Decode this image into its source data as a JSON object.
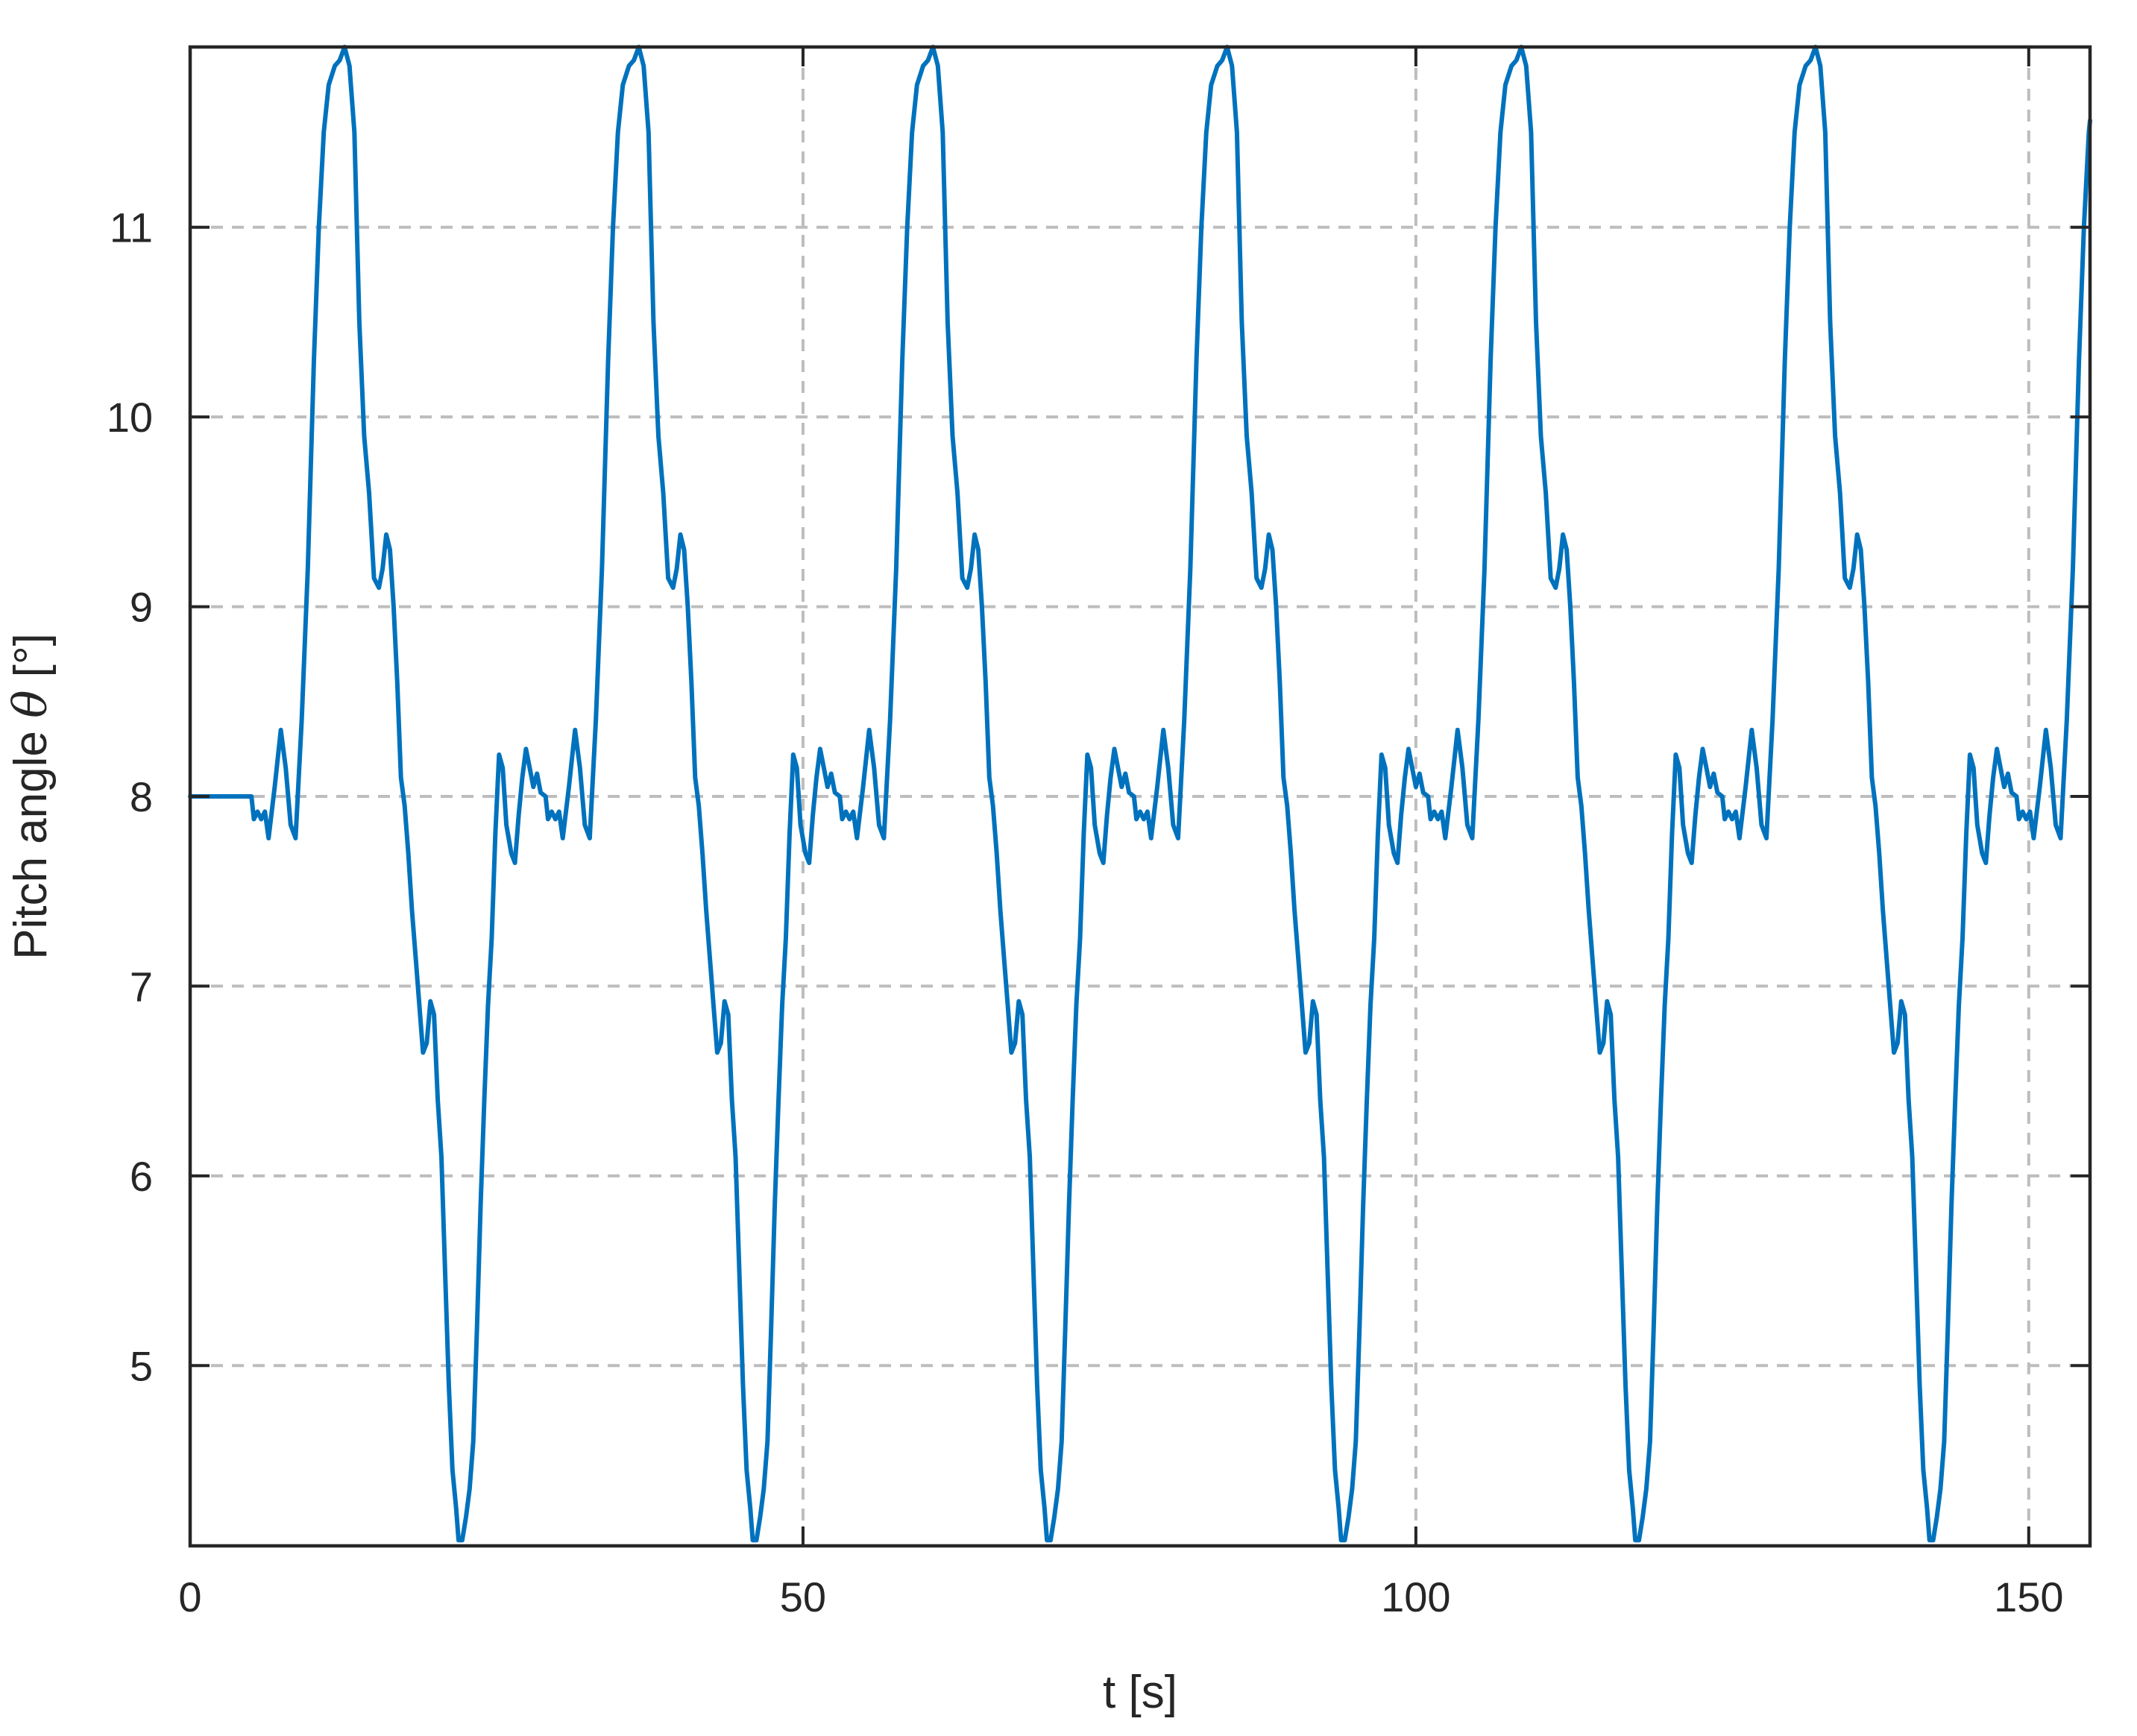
{
  "chart_data": {
    "type": "line",
    "title": "",
    "xlabel": "t [s]",
    "ylabel_prefix": "Pitch angle ",
    "ylabel_symbol": "θ",
    "ylabel_suffix": " [°]",
    "xlim": [
      0,
      155
    ],
    "ylim": [
      4.05,
      11.95
    ],
    "xticks": [
      0,
      50,
      100,
      150
    ],
    "yticks": [
      5,
      6,
      7,
      8,
      9,
      10,
      11
    ],
    "xtick_labels": [
      "0",
      "50",
      "100",
      "150"
    ],
    "ytick_labels": [
      "5",
      "6",
      "7",
      "8",
      "9",
      "10",
      "11"
    ],
    "grid": true,
    "legend": "none",
    "period_s": 24,
    "series": [
      {
        "color": "#0072BD",
        "initial_segment": [
          [
            0,
            8.0
          ],
          [
            5.0,
            8.0
          ]
        ],
        "cycle_start_s": 5.0,
        "cycle_template": [
          [
            0.0,
            8.0
          ],
          [
            0.2,
            7.88
          ],
          [
            0.5,
            7.92
          ],
          [
            0.8,
            7.88
          ],
          [
            1.1,
            7.92
          ],
          [
            1.4,
            7.78
          ],
          [
            1.9,
            8.05
          ],
          [
            2.4,
            8.35
          ],
          [
            2.8,
            8.15
          ],
          [
            3.2,
            7.85
          ],
          [
            3.6,
            7.78
          ],
          [
            4.1,
            8.4
          ],
          [
            4.6,
            9.2
          ],
          [
            5.1,
            10.3
          ],
          [
            5.5,
            11.0
          ],
          [
            5.9,
            11.5
          ],
          [
            6.3,
            11.75
          ],
          [
            6.8,
            11.85
          ],
          [
            7.2,
            11.88
          ],
          [
            7.6,
            11.95
          ],
          [
            8.0,
            11.85
          ],
          [
            8.4,
            11.5
          ],
          [
            8.8,
            10.5
          ],
          [
            9.2,
            9.9
          ],
          [
            9.6,
            9.6
          ],
          [
            10.0,
            9.15
          ],
          [
            10.4,
            9.1
          ],
          [
            10.7,
            9.2
          ],
          [
            11.0,
            9.38
          ],
          [
            11.3,
            9.3
          ],
          [
            11.6,
            9.0
          ],
          [
            11.9,
            8.6
          ],
          [
            12.2,
            8.1
          ],
          [
            12.5,
            7.95
          ],
          [
            12.8,
            7.7
          ],
          [
            13.1,
            7.4
          ],
          [
            13.4,
            7.15
          ],
          [
            13.7,
            6.9
          ],
          [
            14.0,
            6.65
          ],
          [
            14.3,
            6.7
          ],
          [
            14.6,
            6.92
          ],
          [
            14.9,
            6.85
          ],
          [
            15.2,
            6.4
          ],
          [
            15.5,
            6.1
          ],
          [
            15.8,
            5.5
          ],
          [
            16.1,
            4.9
          ],
          [
            16.4,
            4.45
          ],
          [
            16.7,
            4.25
          ],
          [
            16.9,
            4.08
          ],
          [
            17.2,
            4.08
          ],
          [
            17.5,
            4.2
          ],
          [
            17.8,
            4.35
          ],
          [
            18.1,
            4.6
          ],
          [
            18.4,
            5.2
          ],
          [
            18.7,
            5.85
          ],
          [
            19.0,
            6.4
          ],
          [
            19.3,
            6.9
          ],
          [
            19.6,
            7.25
          ],
          [
            19.9,
            7.8
          ],
          [
            20.2,
            8.22
          ],
          [
            20.5,
            8.15
          ],
          [
            20.8,
            7.85
          ],
          [
            21.2,
            7.7
          ],
          [
            21.5,
            7.65
          ],
          [
            21.8,
            7.9
          ],
          [
            22.1,
            8.1
          ],
          [
            22.4,
            8.25
          ],
          [
            22.7,
            8.15
          ],
          [
            23.0,
            8.05
          ],
          [
            23.3,
            8.12
          ],
          [
            23.6,
            8.02
          ],
          [
            24.0,
            8.0
          ]
        ]
      }
    ]
  }
}
